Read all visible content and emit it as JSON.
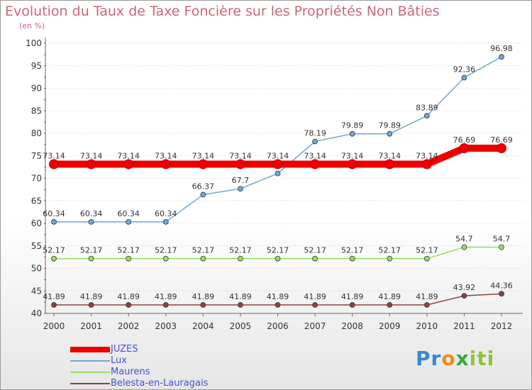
{
  "title": "Evolution du Taux de Taxe Foncière sur les Propriétés Non Bâties",
  "unit_label": "(en %)",
  "logo": {
    "text": "Proxiti",
    "parts": [
      "Pr",
      "o",
      "x",
      "iti"
    ]
  },
  "chart_data": {
    "type": "line",
    "categories": [
      "2000",
      "2001",
      "2002",
      "2003",
      "2004",
      "2005",
      "2006",
      "2007",
      "2008",
      "2009",
      "2010",
      "2011",
      "2012"
    ],
    "ylim": [
      40,
      100
    ],
    "yticks": [
      40,
      45,
      50,
      55,
      60,
      65,
      70,
      75,
      80,
      85,
      90,
      95,
      100
    ],
    "grid": "horizontal dotted",
    "legend_position": "bottom-left",
    "series": [
      {
        "name": "JUZES",
        "color": "#ee0000",
        "width": 10,
        "values": [
          73.14,
          73.14,
          73.14,
          73.14,
          73.14,
          73.14,
          73.14,
          73.14,
          73.14,
          73.14,
          73.14,
          76.69,
          76.69
        ],
        "labels": [
          "73.14",
          "73.14",
          "73.14",
          "73.14",
          "73.14",
          "73.14",
          "73.14",
          "73.14",
          "73.14",
          "73.14",
          "73.14",
          "76.69",
          "76.69"
        ]
      },
      {
        "name": "Lux",
        "color": "#6fa8dc",
        "width": 1.5,
        "values": [
          60.34,
          60.34,
          60.34,
          60.34,
          66.37,
          67.7,
          71.08,
          78.19,
          79.89,
          79.89,
          83.89,
          92.36,
          96.98
        ],
        "labels": [
          "60.34",
          "60.34",
          "60.34",
          "60.34",
          "66.37",
          "67.7",
          "71.08",
          "78.19",
          "79.89",
          "79.89",
          "83.89",
          "92.36",
          "96.98"
        ]
      },
      {
        "name": "Maurens",
        "color": "#99dd66",
        "width": 1.5,
        "values": [
          52.17,
          52.17,
          52.17,
          52.17,
          52.17,
          52.17,
          52.17,
          52.17,
          52.17,
          52.17,
          52.17,
          54.7,
          54.7
        ],
        "labels": [
          "52.17",
          "52.17",
          "52.17",
          "52.17",
          "52.17",
          "52.17",
          "52.17",
          "52.17",
          "52.17",
          "52.17",
          "52.17",
          "54.7",
          "54.7"
        ]
      },
      {
        "name": "Belesta-en-Lauragais",
        "color": "#884444",
        "width": 1.5,
        "values": [
          41.89,
          41.89,
          41.89,
          41.89,
          41.89,
          41.89,
          41.89,
          41.89,
          41.89,
          41.89,
          41.89,
          43.92,
          44.36
        ],
        "labels": [
          "41.89",
          "41.89",
          "41.89",
          "41.89",
          "41.89",
          "41.89",
          "41.89",
          "41.89",
          "41.89",
          "41.89",
          "41.89",
          "43.92",
          "44.36"
        ]
      }
    ]
  }
}
